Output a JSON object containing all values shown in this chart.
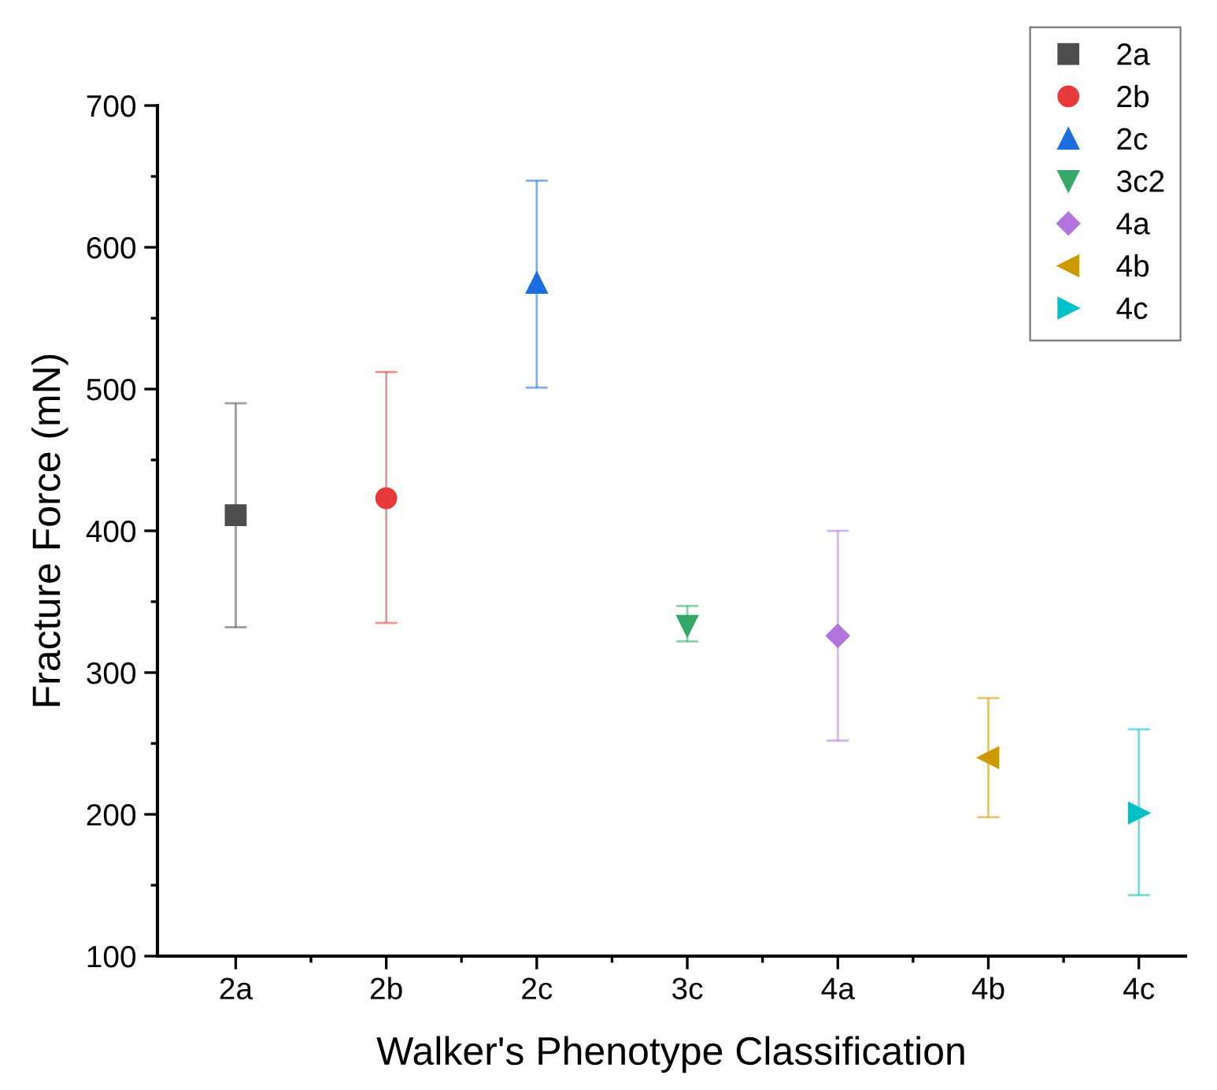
{
  "chart_data": {
    "type": "scatter",
    "xlabel": "Walker's Phenotype Classification",
    "ylabel": "Fracture Force (mN)",
    "categories": [
      "2a",
      "2b",
      "2c",
      "3c",
      "4a",
      "4b",
      "4c"
    ],
    "ylim": [
      100,
      700
    ],
    "yticks": [
      100,
      200,
      300,
      400,
      500,
      600,
      700
    ],
    "grid": false,
    "legend": "top right",
    "series": [
      {
        "name": "2a",
        "color": "#4d4d4d",
        "marker": "square",
        "values": [
          411,
          null,
          null,
          null,
          null,
          null,
          null
        ],
        "errors": [
          [
            332,
            490
          ],
          null,
          null,
          null,
          null,
          null,
          null
        ]
      },
      {
        "name": "2b",
        "color": "#e83a3a",
        "marker": "circle",
        "values": [
          null,
          423,
          null,
          null,
          null,
          null,
          null
        ],
        "errors": [
          null,
          [
            335,
            512
          ],
          null,
          null,
          null,
          null,
          null
        ]
      },
      {
        "name": "2c",
        "color": "#1a6ee0",
        "marker": "triangle",
        "values": [
          null,
          null,
          575,
          null,
          null,
          null,
          null
        ],
        "errors": [
          null,
          null,
          [
            501,
            647
          ],
          null,
          null,
          null,
          null
        ]
      },
      {
        "name": "3c2",
        "color": "#33a867",
        "marker": "triangle-down",
        "values": [
          null,
          null,
          null,
          333,
          null,
          null,
          null
        ],
        "errors": [
          null,
          null,
          null,
          [
            322,
            347
          ],
          null,
          null,
          null
        ]
      },
      {
        "name": "4a",
        "color": "#b275dd",
        "marker": "diamond",
        "values": [
          null,
          null,
          null,
          null,
          326,
          null,
          null
        ],
        "errors": [
          null,
          null,
          null,
          null,
          [
            252,
            400
          ],
          null,
          null
        ]
      },
      {
        "name": "4b",
        "color": "#cc9900",
        "marker": "triangle-left",
        "values": [
          null,
          null,
          null,
          null,
          null,
          240,
          null
        ],
        "errors": [
          null,
          null,
          null,
          null,
          null,
          [
            198,
            282
          ],
          null
        ]
      },
      {
        "name": "4c",
        "color": "#00c2c8",
        "marker": "triangle-right",
        "values": [
          null,
          null,
          null,
          null,
          null,
          null,
          201
        ],
        "errors": [
          null,
          null,
          null,
          null,
          null,
          null,
          [
            143,
            260
          ]
        ]
      }
    ]
  }
}
